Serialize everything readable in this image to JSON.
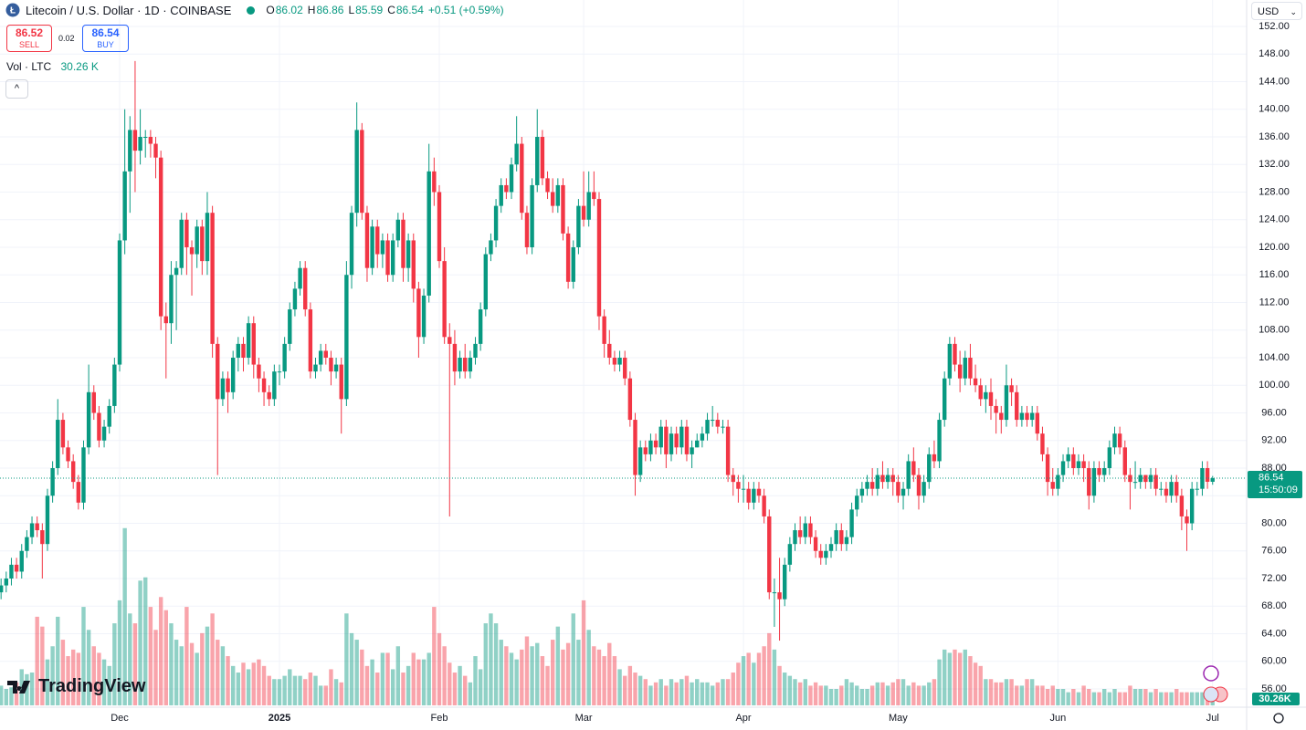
{
  "header": {
    "title": "Litecoin / U.S. Dollar · 1D · COINBASE",
    "ohlc_labels": [
      "O",
      "H",
      "L",
      "C"
    ],
    "change": "+0.51 (+0.59%)",
    "sell_price": "86.52",
    "sell": "SELL",
    "spread": "0.02",
    "buy_price": "86.54",
    "buy": "BUY",
    "volume_title": "Vol · LTC",
    "volume_value": "30.26 K",
    "currency": "USD",
    "countdown": "15:50:09",
    "brand": "TradingView"
  },
  "chart_data": {
    "type": "candlestick",
    "up_color": "#089981",
    "down_color": "#f23645",
    "grid": true,
    "ylim": [
      56,
      152
    ],
    "yticks": [
      {
        "value": 56,
        "label": "56.00"
      },
      {
        "value": 60,
        "label": "60.00"
      },
      {
        "value": 64,
        "label": "64.00"
      },
      {
        "value": 68,
        "label": "68.00"
      },
      {
        "value": 72,
        "label": "72.00"
      },
      {
        "value": 76,
        "label": "76.00"
      },
      {
        "value": 80,
        "label": "80.00"
      },
      {
        "value": 84,
        "label": "84.00"
      },
      {
        "value": 88,
        "label": "88.00"
      },
      {
        "value": 92,
        "label": "92.00"
      },
      {
        "value": 96,
        "label": "96.00"
      },
      {
        "value": 100,
        "label": "100.00"
      },
      {
        "value": 104,
        "label": "104.00"
      },
      {
        "value": 108,
        "label": "108.00"
      },
      {
        "value": 112,
        "label": "112.00"
      },
      {
        "value": 116,
        "label": "116.00"
      },
      {
        "value": 120,
        "label": "120.00"
      },
      {
        "value": 124,
        "label": "124.00"
      },
      {
        "value": 128,
        "label": "128.00"
      },
      {
        "value": 132,
        "label": "132.00"
      },
      {
        "value": 136,
        "label": "136.00"
      },
      {
        "value": 140,
        "label": "140.00"
      },
      {
        "value": 144,
        "label": "144.00"
      },
      {
        "value": 148,
        "label": "148.00"
      },
      {
        "value": 152,
        "label": "152.00"
      }
    ],
    "xticks": [
      {
        "value": 23,
        "label": "Dec"
      },
      {
        "value": 54,
        "label": "2025"
      },
      {
        "value": 85,
        "label": "Feb"
      },
      {
        "value": 113,
        "label": "Mar"
      },
      {
        "value": 144,
        "label": "Apr"
      },
      {
        "value": 174,
        "label": "May"
      },
      {
        "value": 205,
        "label": "Jun"
      },
      {
        "value": 235,
        "label": "Jul"
      }
    ],
    "volume_label": "30.26K",
    "open": [
      70,
      71,
      72,
      74,
      73,
      76,
      78,
      80,
      79,
      77,
      84,
      88,
      95,
      91,
      89,
      86,
      83,
      91,
      99,
      96,
      92,
      94,
      97,
      103,
      121,
      131,
      137,
      134,
      136,
      136,
      135,
      133,
      110,
      109,
      116,
      117,
      124,
      120,
      119,
      123,
      118,
      125,
      106,
      98,
      101,
      99,
      104,
      106,
      104,
      109,
      103,
      101,
      99,
      98,
      102,
      102,
      106,
      111,
      114,
      117,
      111,
      102,
      103,
      105,
      104,
      102,
      103,
      98,
      116,
      125,
      137,
      125,
      117,
      123,
      119,
      121,
      116,
      121,
      124,
      117,
      121,
      114,
      107,
      113,
      131,
      128,
      118,
      107,
      106,
      102,
      104,
      102,
      104,
      106,
      111,
      119,
      121,
      126,
      129,
      128,
      132,
      135,
      125,
      120,
      129,
      136,
      130,
      128,
      126,
      129,
      122,
      115,
      120,
      126,
      124,
      128,
      127,
      110,
      106,
      104,
      103,
      104,
      101,
      95,
      87,
      91,
      90,
      92,
      91,
      94,
      90,
      93,
      91,
      94,
      90,
      91,
      92,
      93,
      95,
      95,
      94,
      94,
      87,
      86,
      85,
      85,
      83,
      85,
      84,
      81,
      70,
      70,
      69,
      74,
      77,
      79,
      78,
      80,
      78,
      76,
      75,
      76,
      77,
      79,
      77,
      78,
      82,
      84,
      85,
      86,
      85,
      87,
      86,
      87,
      86,
      84,
      85,
      89,
      87,
      84,
      86,
      90,
      89,
      95,
      101,
      106,
      103,
      101,
      104,
      101,
      100,
      98,
      99,
      97,
      96,
      95,
      100,
      99,
      95,
      96,
      95,
      96,
      93,
      90,
      86,
      85,
      87,
      89,
      90,
      88,
      89,
      88,
      84,
      88,
      87,
      88,
      91,
      93,
      91,
      87,
      86,
      86,
      87,
      86,
      87,
      85,
      85,
      84,
      86,
      84,
      81,
      80,
      85,
      85,
      88,
      86.02
    ],
    "high": [
      72,
      73,
      75,
      75,
      77,
      79,
      81,
      81,
      80,
      85,
      89,
      98,
      96,
      92,
      90,
      87,
      92,
      103,
      100,
      97,
      95,
      98,
      104,
      122,
      140,
      139,
      147,
      140,
      137,
      137,
      136,
      134,
      112,
      118,
      118,
      125,
      125,
      121,
      124,
      124,
      128,
      126,
      107,
      102,
      102,
      105,
      107,
      107,
      110,
      110,
      104,
      102,
      100,
      103,
      103,
      107,
      112,
      115,
      118,
      118,
      112,
      104,
      106,
      106,
      105,
      104,
      104,
      118,
      126,
      141,
      138,
      126,
      124,
      124,
      122,
      122,
      122,
      125,
      125,
      122,
      122,
      115,
      114,
      135,
      133,
      129,
      120,
      109,
      108,
      105,
      106,
      105,
      107,
      112,
      120,
      122,
      127,
      130,
      130,
      133,
      139,
      136,
      126,
      130,
      140,
      137,
      131,
      130,
      130,
      130,
      123,
      121,
      127,
      131,
      131,
      131,
      128,
      111,
      108,
      105,
      105,
      105,
      102,
      96,
      92,
      92,
      93,
      93,
      95,
      95,
      94,
      94,
      95,
      95,
      92,
      93,
      94,
      96,
      97,
      96,
      95,
      95,
      88,
      87,
      87,
      86,
      86,
      86,
      85,
      82,
      72,
      75,
      75,
      78,
      80,
      81,
      81,
      81,
      79,
      77,
      77,
      78,
      80,
      80,
      79,
      83,
      85,
      86,
      87,
      88,
      88,
      89,
      88,
      88,
      87,
      86,
      90,
      91,
      88,
      87,
      91,
      92,
      96,
      102,
      107,
      107,
      105,
      105,
      106,
      103,
      101,
      100,
      101,
      98,
      97,
      103,
      101,
      100,
      97,
      97,
      97,
      97,
      94,
      91,
      88,
      88,
      90,
      91,
      91,
      90,
      90,
      89,
      89,
      89,
      89,
      92,
      94,
      94,
      92,
      88,
      89,
      88,
      87,
      88,
      88,
      86,
      86,
      87,
      87,
      85,
      82,
      86,
      86,
      89,
      89,
      86.86
    ],
    "low": [
      69,
      70,
      71,
      72,
      72,
      75,
      77,
      78,
      72,
      76,
      83,
      87,
      90,
      88,
      85,
      82,
      82,
      90,
      95,
      91,
      91,
      93,
      96,
      102,
      119,
      125,
      128,
      132,
      133,
      133,
      130,
      108,
      101,
      106,
      108,
      116,
      116,
      113,
      117,
      116,
      116,
      104,
      87,
      97,
      96,
      98,
      102,
      102,
      103,
      101,
      99,
      97,
      97,
      97,
      100,
      101,
      105,
      110,
      113,
      110,
      101,
      101,
      102,
      103,
      100,
      101,
      93,
      97,
      114,
      123,
      124,
      115,
      116,
      117,
      117,
      115,
      115,
      120,
      115,
      115,
      112,
      104,
      106,
      112,
      126,
      117,
      106,
      81,
      100,
      101,
      101,
      101,
      103,
      105,
      110,
      118,
      120,
      125,
      127,
      127,
      131,
      124,
      119,
      119,
      128,
      129,
      127,
      125,
      125,
      121,
      114,
      114,
      119,
      123,
      123,
      126,
      108,
      104,
      103,
      102,
      102,
      100,
      94,
      84,
      86,
      89,
      89,
      90,
      90,
      88,
      89,
      90,
      90,
      89,
      88,
      91,
      91,
      92,
      94,
      93,
      93,
      86,
      84,
      83,
      83,
      82,
      82,
      83,
      80,
      69,
      65,
      63,
      68,
      73,
      76,
      77,
      77,
      77,
      75,
      74,
      74,
      75,
      76,
      76,
      76,
      77,
      81,
      83,
      84,
      84,
      84,
      85,
      85,
      84,
      83,
      82,
      84,
      86,
      82,
      83,
      85,
      88,
      88,
      94,
      100,
      102,
      99,
      100,
      100,
      99,
      97,
      96,
      95,
      93,
      93,
      94,
      97,
      94,
      94,
      94,
      94,
      92,
      89,
      84,
      84,
      84,
      86,
      88,
      87,
      87,
      86,
      82,
      83,
      86,
      86,
      87,
      90,
      90,
      86,
      82,
      85,
      85,
      85,
      85,
      84,
      84,
      83,
      83,
      83,
      79,
      76,
      79,
      84,
      84,
      85,
      85.59
    ],
    "close": [
      71,
      72,
      74,
      73,
      76,
      78,
      80,
      79,
      77,
      84,
      88,
      95,
      91,
      89,
      86,
      83,
      91,
      99,
      96,
      92,
      94,
      97,
      103,
      121,
      131,
      137,
      134,
      136,
      136,
      135,
      133,
      110,
      109,
      116,
      117,
      124,
      120,
      119,
      123,
      118,
      125,
      106,
      98,
      101,
      99,
      104,
      106,
      104,
      109,
      103,
      101,
      99,
      98,
      102,
      102,
      106,
      111,
      114,
      117,
      111,
      102,
      103,
      105,
      104,
      102,
      103,
      98,
      116,
      125,
      137,
      125,
      117,
      123,
      119,
      121,
      116,
      121,
      124,
      117,
      121,
      114,
      107,
      113,
      131,
      128,
      118,
      107,
      106,
      102,
      104,
      102,
      104,
      106,
      111,
      119,
      121,
      126,
      129,
      128,
      132,
      135,
      125,
      120,
      129,
      136,
      130,
      128,
      126,
      129,
      122,
      115,
      120,
      126,
      124,
      128,
      127,
      110,
      106,
      104,
      103,
      104,
      101,
      95,
      87,
      91,
      90,
      92,
      91,
      94,
      90,
      93,
      91,
      94,
      90,
      91,
      92,
      93,
      95,
      95,
      94,
      94,
      87,
      86,
      85,
      85,
      83,
      85,
      84,
      81,
      70,
      70,
      69,
      74,
      77,
      79,
      78,
      80,
      78,
      76,
      75,
      76,
      77,
      79,
      77,
      78,
      82,
      84,
      85,
      86,
      85,
      87,
      86,
      87,
      86,
      84,
      85,
      89,
      87,
      84,
      86,
      90,
      89,
      95,
      101,
      106,
      103,
      101,
      104,
      101,
      100,
      98,
      99,
      97,
      96,
      95,
      100,
      99,
      95,
      96,
      95,
      96,
      93,
      90,
      86,
      85,
      87,
      89,
      90,
      88,
      89,
      88,
      84,
      88,
      87,
      88,
      91,
      93,
      91,
      87,
      86,
      86,
      87,
      86,
      87,
      85,
      85,
      84,
      86,
      84,
      81,
      80,
      85,
      85,
      88,
      86.02,
      86.54
    ],
    "volume": [
      60,
      50,
      55,
      70,
      110,
      95,
      100,
      270,
      240,
      140,
      180,
      270,
      200,
      150,
      170,
      160,
      300,
      230,
      180,
      160,
      140,
      120,
      250,
      320,
      540,
      280,
      250,
      380,
      390,
      300,
      230,
      330,
      290,
      250,
      200,
      180,
      300,
      190,
      160,
      220,
      240,
      280,
      200,
      180,
      150,
      120,
      100,
      130,
      110,
      130,
      140,
      120,
      90,
      80,
      80,
      90,
      110,
      90,
      90,
      80,
      100,
      90,
      60,
      60,
      110,
      80,
      70,
      280,
      220,
      200,
      170,
      120,
      140,
      100,
      160,
      160,
      110,
      180,
      100,
      120,
      160,
      140,
      140,
      160,
      300,
      220,
      180,
      130,
      100,
      120,
      90,
      70,
      150,
      110,
      250,
      280,
      250,
      200,
      180,
      160,
      140,
      170,
      210,
      180,
      190,
      150,
      120,
      200,
      240,
      170,
      190,
      280,
      200,
      320,
      230,
      180,
      170,
      150,
      190,
      150,
      110,
      90,
      120,
      100,
      90,
      80,
      60,
      70,
      80,
      60,
      80,
      70,
      80,
      90,
      70,
      80,
      70,
      70,
      60,
      70,
      80,
      80,
      100,
      130,
      150,
      160,
      130,
      160,
      180,
      220,
      170,
      120,
      100,
      90,
      80,
      70,
      80,
      60,
      70,
      60,
      60,
      50,
      50,
      60,
      80,
      70,
      60,
      50,
      50,
      60,
      70,
      70,
      60,
      70,
      80,
      80,
      60,
      70,
      60,
      60,
      70,
      80,
      140,
      170,
      160,
      170,
      160,
      170,
      150,
      130,
      120,
      80,
      80,
      70,
      70,
      80,
      80,
      60,
      60,
      80,
      80,
      60,
      60,
      50,
      60,
      50,
      50,
      40,
      50,
      40,
      60,
      50,
      40,
      40,
      50,
      40,
      50,
      40,
      40,
      60,
      50,
      50,
      50,
      40,
      50,
      40,
      40,
      40,
      50,
      40,
      40,
      40,
      40,
      40,
      40,
      30.26
    ]
  }
}
